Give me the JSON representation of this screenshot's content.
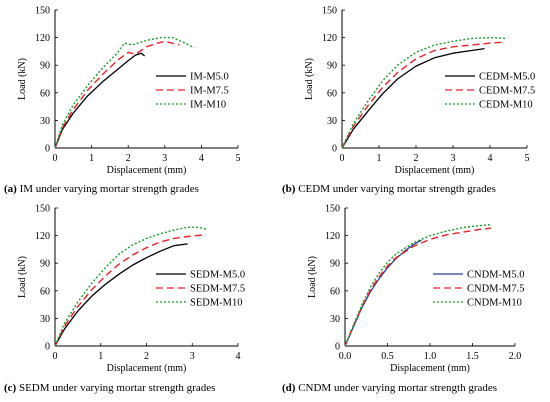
{
  "chart_data": [
    {
      "type": "line",
      "panel_id": "(a)",
      "caption": "IM under varying mortar strength grades",
      "xlabel": "Displacement (mm)",
      "ylabel": "Load (kN)",
      "xlim": [
        0,
        5
      ],
      "ylim": [
        0,
        150
      ],
      "xticks": [
        0,
        1,
        2,
        3,
        4,
        5
      ],
      "yticks": [
        0,
        30,
        60,
        90,
        120,
        150
      ],
      "xtick_labels": [
        "0",
        "1",
        "2",
        "3",
        "4",
        "5"
      ],
      "ytick_labels": [
        "0",
        "30",
        "60",
        "90",
        "120",
        "150"
      ],
      "grid": false,
      "legend_position": "center-right",
      "series": [
        {
          "name": "IM-M5.0",
          "color": "#000000",
          "style": "solid",
          "x": [
            0,
            0.2,
            0.5,
            0.9,
            1.3,
            1.7,
            2.0,
            2.2,
            2.35,
            2.45
          ],
          "y": [
            0,
            20,
            38,
            57,
            72,
            85,
            95,
            101,
            103,
            100
          ]
        },
        {
          "name": "IM-M7.5",
          "color": "#e8202a",
          "style": "dashed",
          "x": [
            0,
            0.2,
            0.5,
            0.9,
            1.3,
            1.7,
            2.0,
            2.2,
            2.5,
            2.8,
            3.0,
            3.2,
            3.4
          ],
          "y": [
            0,
            22,
            42,
            63,
            80,
            95,
            104,
            102,
            110,
            114,
            116,
            114,
            112
          ]
        },
        {
          "name": "IM-M10",
          "color": "#1a9a2a",
          "style": "dotted",
          "x": [
            0,
            0.2,
            0.5,
            0.9,
            1.3,
            1.7,
            1.9,
            2.1,
            2.5,
            2.9,
            3.2,
            3.5,
            3.8
          ],
          "y": [
            0,
            25,
            47,
            68,
            87,
            103,
            114,
            112,
            117,
            120,
            120,
            115,
            109
          ]
        }
      ]
    },
    {
      "type": "line",
      "panel_id": "(b)",
      "caption": "CEDM under varying mortar strength grades",
      "xlabel": "Displacement (mm)",
      "ylabel": "Load (kN)",
      "xlim": [
        0,
        5
      ],
      "ylim": [
        0,
        150
      ],
      "xticks": [
        0,
        1,
        2,
        3,
        4,
        5
      ],
      "yticks": [
        0,
        30,
        60,
        90,
        120,
        150
      ],
      "xtick_labels": [
        "0",
        "1",
        "2",
        "3",
        "4",
        "5"
      ],
      "ytick_labels": [
        "0",
        "30",
        "60",
        "90",
        "120",
        "150"
      ],
      "grid": false,
      "legend_position": "center-right",
      "series": [
        {
          "name": "CEDM-M5.0",
          "color": "#000000",
          "style": "solid",
          "x": [
            0,
            0.3,
            0.7,
            1.1,
            1.5,
            2.0,
            2.5,
            3.0,
            3.5,
            3.85
          ],
          "y": [
            0,
            20,
            40,
            59,
            75,
            89,
            98,
            103,
            106,
            108
          ]
        },
        {
          "name": "CEDM-M7.5",
          "color": "#e8202a",
          "style": "dashed",
          "x": [
            0,
            0.3,
            0.7,
            1.1,
            1.5,
            2.0,
            2.5,
            3.0,
            3.5,
            4.0,
            4.35
          ],
          "y": [
            0,
            23,
            46,
            66,
            82,
            97,
            106,
            110,
            112,
            114,
            115
          ]
        },
        {
          "name": "CEDM-M10",
          "color": "#1a9a2a",
          "style": "dotted",
          "x": [
            0,
            0.3,
            0.7,
            1.1,
            1.5,
            2.0,
            2.5,
            3.0,
            3.5,
            4.0,
            4.45
          ],
          "y": [
            0,
            26,
            51,
            73,
            90,
            104,
            112,
            116,
            119,
            120,
            119
          ]
        }
      ]
    },
    {
      "type": "line",
      "panel_id": "(c)",
      "caption": "SEDM under varying mortar strength grades",
      "xlabel": "Displacement (mm)",
      "ylabel": "Load (kN)",
      "xlim": [
        0,
        4
      ],
      "ylim": [
        0,
        150
      ],
      "xticks": [
        0,
        1,
        2,
        3,
        4
      ],
      "yticks": [
        0,
        30,
        60,
        90,
        120,
        150
      ],
      "xtick_labels": [
        "0",
        "1",
        "2",
        "3",
        "4"
      ],
      "ytick_labels": [
        "0",
        "30",
        "60",
        "90",
        "120",
        "150"
      ],
      "grid": false,
      "legend_position": "center-right",
      "series": [
        {
          "name": "SEDM-M5.0",
          "color": "#000000",
          "style": "solid",
          "x": [
            0,
            0.2,
            0.5,
            0.8,
            1.1,
            1.4,
            1.7,
            2.0,
            2.3,
            2.6,
            2.9
          ],
          "y": [
            0,
            18,
            38,
            54,
            67,
            78,
            88,
            96,
            103,
            109,
            111
          ]
        },
        {
          "name": "SEDM-M7.5",
          "color": "#e8202a",
          "style": "dashed",
          "x": [
            0,
            0.2,
            0.5,
            0.8,
            1.1,
            1.4,
            1.7,
            2.0,
            2.3,
            2.6,
            2.9,
            3.1,
            3.3
          ],
          "y": [
            0,
            21,
            43,
            61,
            76,
            89,
            99,
            107,
            113,
            117,
            119,
            120,
            121
          ]
        },
        {
          "name": "SEDM-M10",
          "color": "#1a9a2a",
          "style": "dotted",
          "x": [
            0,
            0.2,
            0.5,
            0.8,
            1.1,
            1.4,
            1.7,
            2.0,
            2.3,
            2.6,
            2.9,
            3.15,
            3.3
          ],
          "y": [
            0,
            24,
            48,
            68,
            85,
            100,
            110,
            117,
            122,
            126,
            129,
            129,
            127
          ]
        }
      ]
    },
    {
      "type": "line",
      "panel_id": "(d)",
      "caption": "CNDM under varying mortar strength grades",
      "xlabel": "Displacement (mm)",
      "ylabel": "Load (kN)",
      "xlim": [
        0,
        2
      ],
      "ylim": [
        0,
        150
      ],
      "xticks": [
        0,
        0.5,
        1,
        1.5,
        2
      ],
      "yticks": [
        0,
        30,
        60,
        90,
        120,
        150
      ],
      "xtick_labels": [
        "0.0",
        "0.5",
        "1.0",
        "1.5",
        "2.0"
      ],
      "ytick_labels": [
        "0",
        "30",
        "60",
        "90",
        "120",
        "150"
      ],
      "grid": false,
      "legend_position": "center-right",
      "series": [
        {
          "name": "CNDM-M5.0",
          "color": "#2a3f8f",
          "style": "solid",
          "x": [
            0,
            0.1,
            0.2,
            0.3,
            0.4,
            0.5,
            0.6,
            0.7,
            0.8,
            0.9
          ],
          "y": [
            0,
            21,
            42,
            59,
            73,
            85,
            95,
            103,
            110,
            115
          ]
        },
        {
          "name": "CNDM-M7.5",
          "color": "#e8202a",
          "style": "dashed",
          "x": [
            0,
            0.1,
            0.2,
            0.3,
            0.4,
            0.5,
            0.6,
            0.8,
            1.0,
            1.2,
            1.4,
            1.6,
            1.72
          ],
          "y": [
            0,
            22,
            43,
            61,
            75,
            87,
            96,
            108,
            116,
            121,
            124,
            127,
            128
          ]
        },
        {
          "name": "CNDM-M10",
          "color": "#1a9a2a",
          "style": "dotted",
          "x": [
            0,
            0.1,
            0.2,
            0.3,
            0.4,
            0.5,
            0.6,
            0.8,
            1.0,
            1.2,
            1.4,
            1.6,
            1.72
          ],
          "y": [
            0,
            23,
            45,
            64,
            79,
            91,
            100,
            112,
            120,
            125,
            129,
            131,
            132
          ]
        }
      ]
    }
  ]
}
